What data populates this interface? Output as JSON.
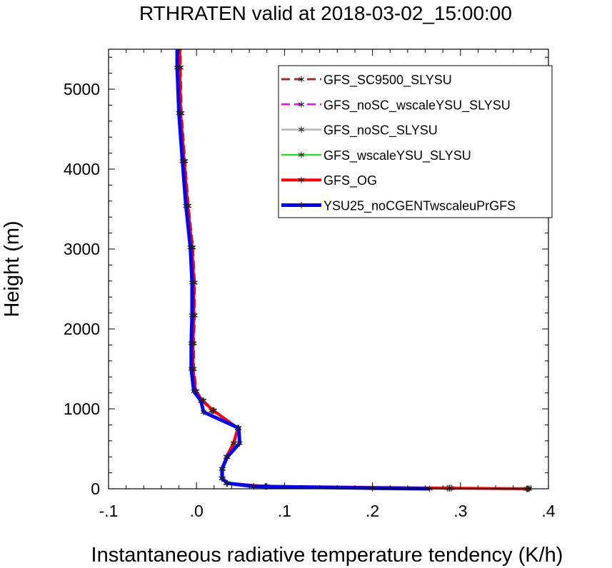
{
  "chart_data": {
    "type": "line",
    "title": "RTHRATEN valid at 2018-03-02_15:00:00",
    "xlabel": "Instantaneous radiative temperature tendency (K/h)",
    "ylabel": "Height (m)",
    "xlim": [
      -0.1,
      0.4
    ],
    "ylim": [
      0,
      5500
    ],
    "x_ticks": [
      -0.1,
      0.0,
      0.1,
      0.2,
      0.3,
      0.4
    ],
    "x_tick_labels": [
      "-.1",
      ".0",
      ".1",
      ".2",
      ".3",
      ".4"
    ],
    "y_ticks": [
      0,
      1000,
      2000,
      3000,
      4000,
      5000
    ],
    "y_tick_labels": [
      "0",
      "1000",
      "2000",
      "3000",
      "4000",
      "5000"
    ],
    "grid": false,
    "legend_position": "top-right",
    "series": [
      {
        "name": "GFS_SC9500_SLYSU",
        "color": "#a52a2a",
        "dash": "dashed",
        "width": 3,
        "points": [
          [
            0.378,
            0
          ],
          [
            0.29,
            8
          ],
          [
            0.08,
            30
          ],
          [
            0.035,
            70
          ],
          [
            0.03,
            130
          ],
          [
            0.03,
            250
          ],
          [
            0.035,
            400
          ],
          [
            0.043,
            570
          ],
          [
            0.047,
            760
          ],
          [
            0.02,
            980
          ],
          [
            0.008,
            1100
          ],
          [
            0.0,
            1220
          ],
          [
            -0.003,
            1500
          ],
          [
            -0.003,
            1820
          ],
          [
            -0.002,
            2170
          ],
          [
            -0.002,
            2580
          ],
          [
            -0.004,
            3020
          ],
          [
            -0.009,
            3540
          ],
          [
            -0.013,
            4100
          ],
          [
            -0.017,
            4700
          ],
          [
            -0.018,
            5270
          ],
          [
            -0.018,
            5500
          ]
        ]
      },
      {
        "name": "GFS_noSC_wscaleYSU_SLYSU",
        "color": "#ff00ff",
        "dash": "dashed",
        "width": 2.5,
        "points": [
          [
            0.375,
            0
          ],
          [
            0.285,
            8
          ],
          [
            0.078,
            30
          ],
          [
            0.034,
            70
          ],
          [
            0.029,
            130
          ],
          [
            0.029,
            250
          ],
          [
            0.034,
            400
          ],
          [
            0.042,
            570
          ],
          [
            0.047,
            760
          ],
          [
            0.017,
            980
          ],
          [
            0.006,
            1100
          ],
          [
            -0.001,
            1220
          ],
          [
            -0.004,
            1500
          ],
          [
            -0.004,
            1820
          ],
          [
            -0.003,
            2170
          ],
          [
            -0.003,
            2580
          ],
          [
            -0.005,
            3020
          ],
          [
            -0.01,
            3540
          ],
          [
            -0.014,
            4100
          ],
          [
            -0.018,
            4700
          ],
          [
            -0.019,
            5270
          ],
          [
            -0.019,
            5500
          ]
        ]
      },
      {
        "name": "GFS_noSC_SLYSU",
        "color": "#b4b4b4",
        "dash": "solid",
        "width": 2.5,
        "points": [
          [
            0.376,
            0
          ],
          [
            0.287,
            8
          ],
          [
            0.079,
            30
          ],
          [
            0.034,
            70
          ],
          [
            0.029,
            130
          ],
          [
            0.029,
            250
          ],
          [
            0.034,
            400
          ],
          [
            0.042,
            570
          ],
          [
            0.047,
            760
          ],
          [
            0.018,
            980
          ],
          [
            0.007,
            1100
          ],
          [
            -0.001,
            1220
          ],
          [
            -0.004,
            1500
          ],
          [
            -0.004,
            1820
          ],
          [
            -0.003,
            2170
          ],
          [
            -0.003,
            2580
          ],
          [
            -0.005,
            3020
          ],
          [
            -0.01,
            3540
          ],
          [
            -0.014,
            4100
          ],
          [
            -0.018,
            4700
          ],
          [
            -0.019,
            5270
          ],
          [
            -0.019,
            5500
          ]
        ]
      },
      {
        "name": "GFS_wscaleYSU_SLYSU",
        "color": "#00ee00",
        "dash": "solid",
        "width": 2,
        "points": [
          [
            0.376,
            0
          ],
          [
            0.288,
            8
          ],
          [
            0.079,
            30
          ],
          [
            0.034,
            70
          ],
          [
            0.029,
            130
          ],
          [
            0.029,
            250
          ],
          [
            0.034,
            400
          ],
          [
            0.042,
            570
          ],
          [
            0.047,
            760
          ],
          [
            0.019,
            980
          ],
          [
            0.007,
            1100
          ],
          [
            -0.001,
            1220
          ],
          [
            -0.004,
            1500
          ],
          [
            -0.004,
            1820
          ],
          [
            -0.003,
            2170
          ],
          [
            -0.003,
            2580
          ],
          [
            -0.005,
            3020
          ],
          [
            -0.01,
            3540
          ],
          [
            -0.014,
            4100
          ],
          [
            -0.018,
            4700
          ],
          [
            -0.019,
            5270
          ],
          [
            -0.019,
            5500
          ]
        ]
      },
      {
        "name": "GFS_OG",
        "color": "#ff0000",
        "dash": "solid",
        "width": 4,
        "points": [
          [
            0.377,
            0
          ],
          [
            0.288,
            8
          ],
          [
            0.079,
            30
          ],
          [
            0.034,
            70
          ],
          [
            0.029,
            130
          ],
          [
            0.029,
            250
          ],
          [
            0.034,
            400
          ],
          [
            0.042,
            570
          ],
          [
            0.047,
            760
          ],
          [
            0.019,
            980
          ],
          [
            0.007,
            1100
          ],
          [
            -0.001,
            1220
          ],
          [
            -0.004,
            1500
          ],
          [
            -0.004,
            1820
          ],
          [
            -0.003,
            2170
          ],
          [
            -0.003,
            2580
          ],
          [
            -0.005,
            3020
          ],
          [
            -0.01,
            3540
          ],
          [
            -0.014,
            4100
          ],
          [
            -0.018,
            4700
          ],
          [
            -0.019,
            5270
          ],
          [
            -0.019,
            5500
          ]
        ]
      },
      {
        "name": "YSU25_noCGENTwscaleuPrGFS",
        "color": "#0000ff",
        "dash": "solid",
        "width": 5,
        "points": [
          [
            0.265,
            0
          ],
          [
            0.2,
            8
          ],
          [
            0.065,
            30
          ],
          [
            0.035,
            70
          ],
          [
            0.029,
            130
          ],
          [
            0.029,
            250
          ],
          [
            0.035,
            400
          ],
          [
            0.049,
            570
          ],
          [
            0.048,
            760
          ],
          [
            0.008,
            960
          ],
          [
            0.005,
            1100
          ],
          [
            -0.003,
            1220
          ],
          [
            -0.006,
            1500
          ],
          [
            -0.006,
            1820
          ],
          [
            -0.005,
            2170
          ],
          [
            -0.005,
            2580
          ],
          [
            -0.007,
            3020
          ],
          [
            -0.012,
            3540
          ],
          [
            -0.016,
            4100
          ],
          [
            -0.02,
            4700
          ],
          [
            -0.022,
            5270
          ],
          [
            -0.022,
            5500
          ]
        ]
      }
    ]
  }
}
